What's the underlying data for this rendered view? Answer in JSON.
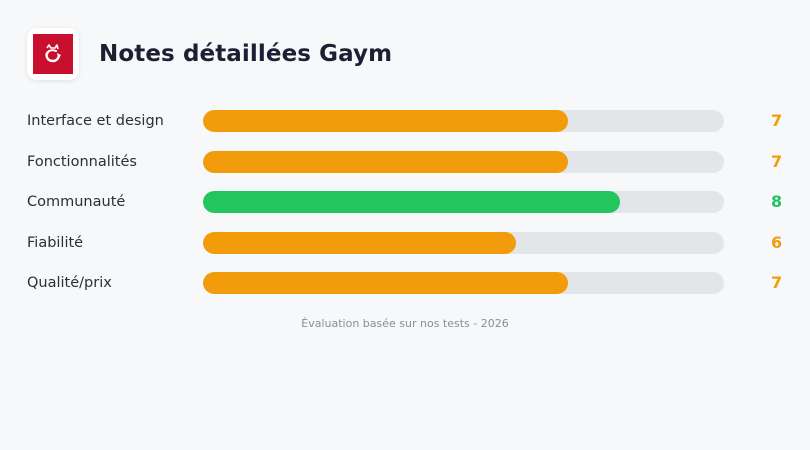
{
  "header": {
    "title": "Notes détaillées Gaym",
    "logo_icon": "gaym-logo-icon",
    "logo_color": "#c8102e"
  },
  "colors": {
    "orange": "#f39c0b",
    "green": "#22c55e",
    "track": "#e3e6e8"
  },
  "ratings": [
    {
      "label": "Interface et design",
      "score": "7",
      "value": 7,
      "color": "#f39c0b"
    },
    {
      "label": "Fonctionnalités",
      "score": "7",
      "value": 7,
      "color": "#f39c0b"
    },
    {
      "label": "Communauté",
      "score": "8",
      "value": 8,
      "color": "#22c55e"
    },
    {
      "label": "Fiabilité",
      "score": "6",
      "value": 6,
      "color": "#f39c0b"
    },
    {
      "label": "Qualité/prix",
      "score": "7",
      "value": 7,
      "color": "#f39c0b"
    }
  ],
  "footer": {
    "text": "Évaluation basée sur nos tests - 2026"
  },
  "chart_data": {
    "type": "bar",
    "orientation": "horizontal",
    "title": "Notes détaillées Gaym",
    "categories": [
      "Interface et design",
      "Fonctionnalités",
      "Communauté",
      "Fiabilité",
      "Qualité/prix"
    ],
    "values": [
      7,
      7,
      8,
      6,
      7
    ],
    "xlim": [
      0,
      10
    ],
    "xlabel": "",
    "ylabel": "",
    "grid": false,
    "legend": null,
    "bar_colors": [
      "#f39c0b",
      "#f39c0b",
      "#22c55e",
      "#f39c0b",
      "#f39c0b"
    ],
    "annotations": [
      "Évaluation basée sur nos tests - 2026"
    ]
  }
}
